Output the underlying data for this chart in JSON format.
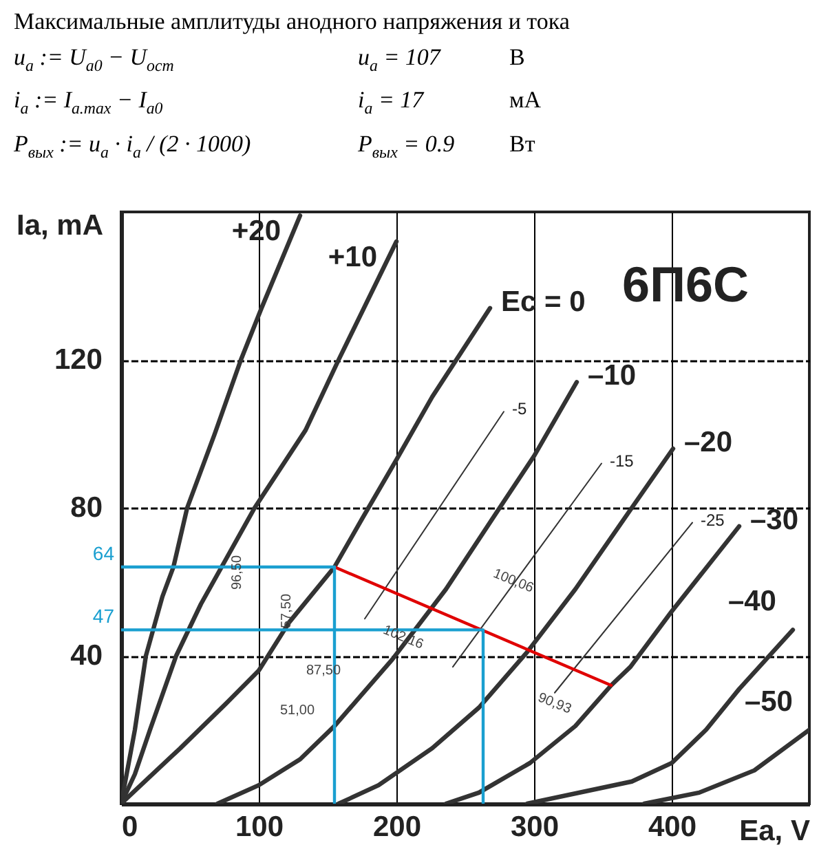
{
  "chart_data": {
    "type": "line",
    "title": "Максимальные амплитуды анодного напряжения и тока",
    "xlabel": "Ea, V",
    "ylabel": "Ia, mA",
    "xlim": [
      0,
      500
    ],
    "ylim": [
      0,
      160
    ],
    "xticks": [
      0,
      100,
      200,
      300,
      400
    ],
    "yticks": [
      40,
      80,
      120
    ],
    "grid": true,
    "marker": "none",
    "line_style": "solid",
    "series": [
      {
        "name": "+20",
        "color": "#333333",
        "x": [
          0,
          5,
          10,
          18,
          30,
          38,
          48,
          68,
          87,
          102,
          130
        ],
        "values": [
          0,
          10,
          20,
          40,
          56,
          64,
          80,
          100,
          120,
          134,
          159
        ]
      },
      {
        "name": "+10",
        "color": "#333333",
        "x": [
          0,
          10,
          21,
          40,
          58,
          73,
          97,
          134,
          158,
          200
        ],
        "values": [
          0,
          8,
          20,
          40,
          54,
          64,
          80,
          101,
          120,
          152
        ]
      },
      {
        "name": "Ec = 0",
        "color": "#333333",
        "x": [
          0,
          20,
          43,
          76,
          100,
          122,
          155,
          175,
          200,
          226,
          268
        ],
        "values": [
          0,
          7,
          15,
          27,
          36,
          49,
          64,
          77,
          93,
          110,
          134
        ]
      },
      {
        "name": "–10",
        "color": "#333333",
        "x": [
          70,
          100,
          130,
          155,
          197,
          236,
          275,
          300,
          331
        ],
        "values": [
          0,
          5,
          12,
          21,
          39,
          58,
          80,
          94,
          114
        ]
      },
      {
        "name": "–20",
        "color": "#333333",
        "x": [
          158,
          187,
          226,
          260,
          295,
          330,
          371,
          401
        ],
        "values": [
          0,
          5,
          15,
          26,
          41,
          58,
          80,
          96
        ]
      },
      {
        "name": "–30",
        "color": "#333333",
        "x": [
          236,
          260,
          297,
          330,
          356,
          370,
          400,
          449
        ],
        "values": [
          0,
          3,
          11,
          21,
          32,
          37,
          52,
          75
        ]
      },
      {
        "name": "–40",
        "color": "#333333",
        "x": [
          295,
          371,
          400,
          425,
          449,
          488
        ],
        "values": [
          0,
          6,
          11,
          20,
          31,
          47
        ]
      },
      {
        "name": "–50",
        "color": "#333333",
        "x": [
          380,
          420,
          460,
          500
        ],
        "values": [
          0,
          3,
          9,
          20
        ]
      },
      {
        "name": "-5",
        "color": "#333333",
        "x": [
          177,
          278
        ],
        "values": [
          50,
          106
        ]
      },
      {
        "name": "-15",
        "color": "#333333",
        "x": [
          241,
          349
        ],
        "values": [
          37,
          92
        ]
      },
      {
        "name": "-25",
        "color": "#333333",
        "x": [
          315,
          415
        ],
        "values": [
          30,
          76
        ]
      },
      {
        "color": "#e00000",
        "x": [
          155,
          356
        ],
        "values": [
          64,
          32
        ]
      },
      {
        "color": "#1a9fd0",
        "x": [
          0,
          155,
          155
        ],
        "values": [
          64,
          64,
          0
        ],
        "value_labels": [
          "64",
          null,
          null
        ]
      },
      {
        "color": "#1a9fd0",
        "x": [
          0,
          263,
          263
        ],
        "values": [
          47,
          47,
          0
        ],
        "value_labels": [
          "47",
          null,
          null
        ]
      }
    ],
    "annotations": [
      "u$_{a}$ := U$_{a0}$ − U$_{ост}$",
      "u$_{a}$ = 107",
      "В",
      "i$_{a}$ := I$_{a.max}$ − I$_{a0}$",
      "i$_{a}$ = 17",
      "мА",
      "P$_{вых}$ := u$_{a}$ · i$_{a}$ / (2 · 1000)",
      "P$_{вых}$ = 0.9",
      "Вт",
      "6П6С",
      "96,50",
      "57,50",
      "87,50",
      "51,00",
      "102,16",
      "100,06",
      "90,93"
    ]
  }
}
